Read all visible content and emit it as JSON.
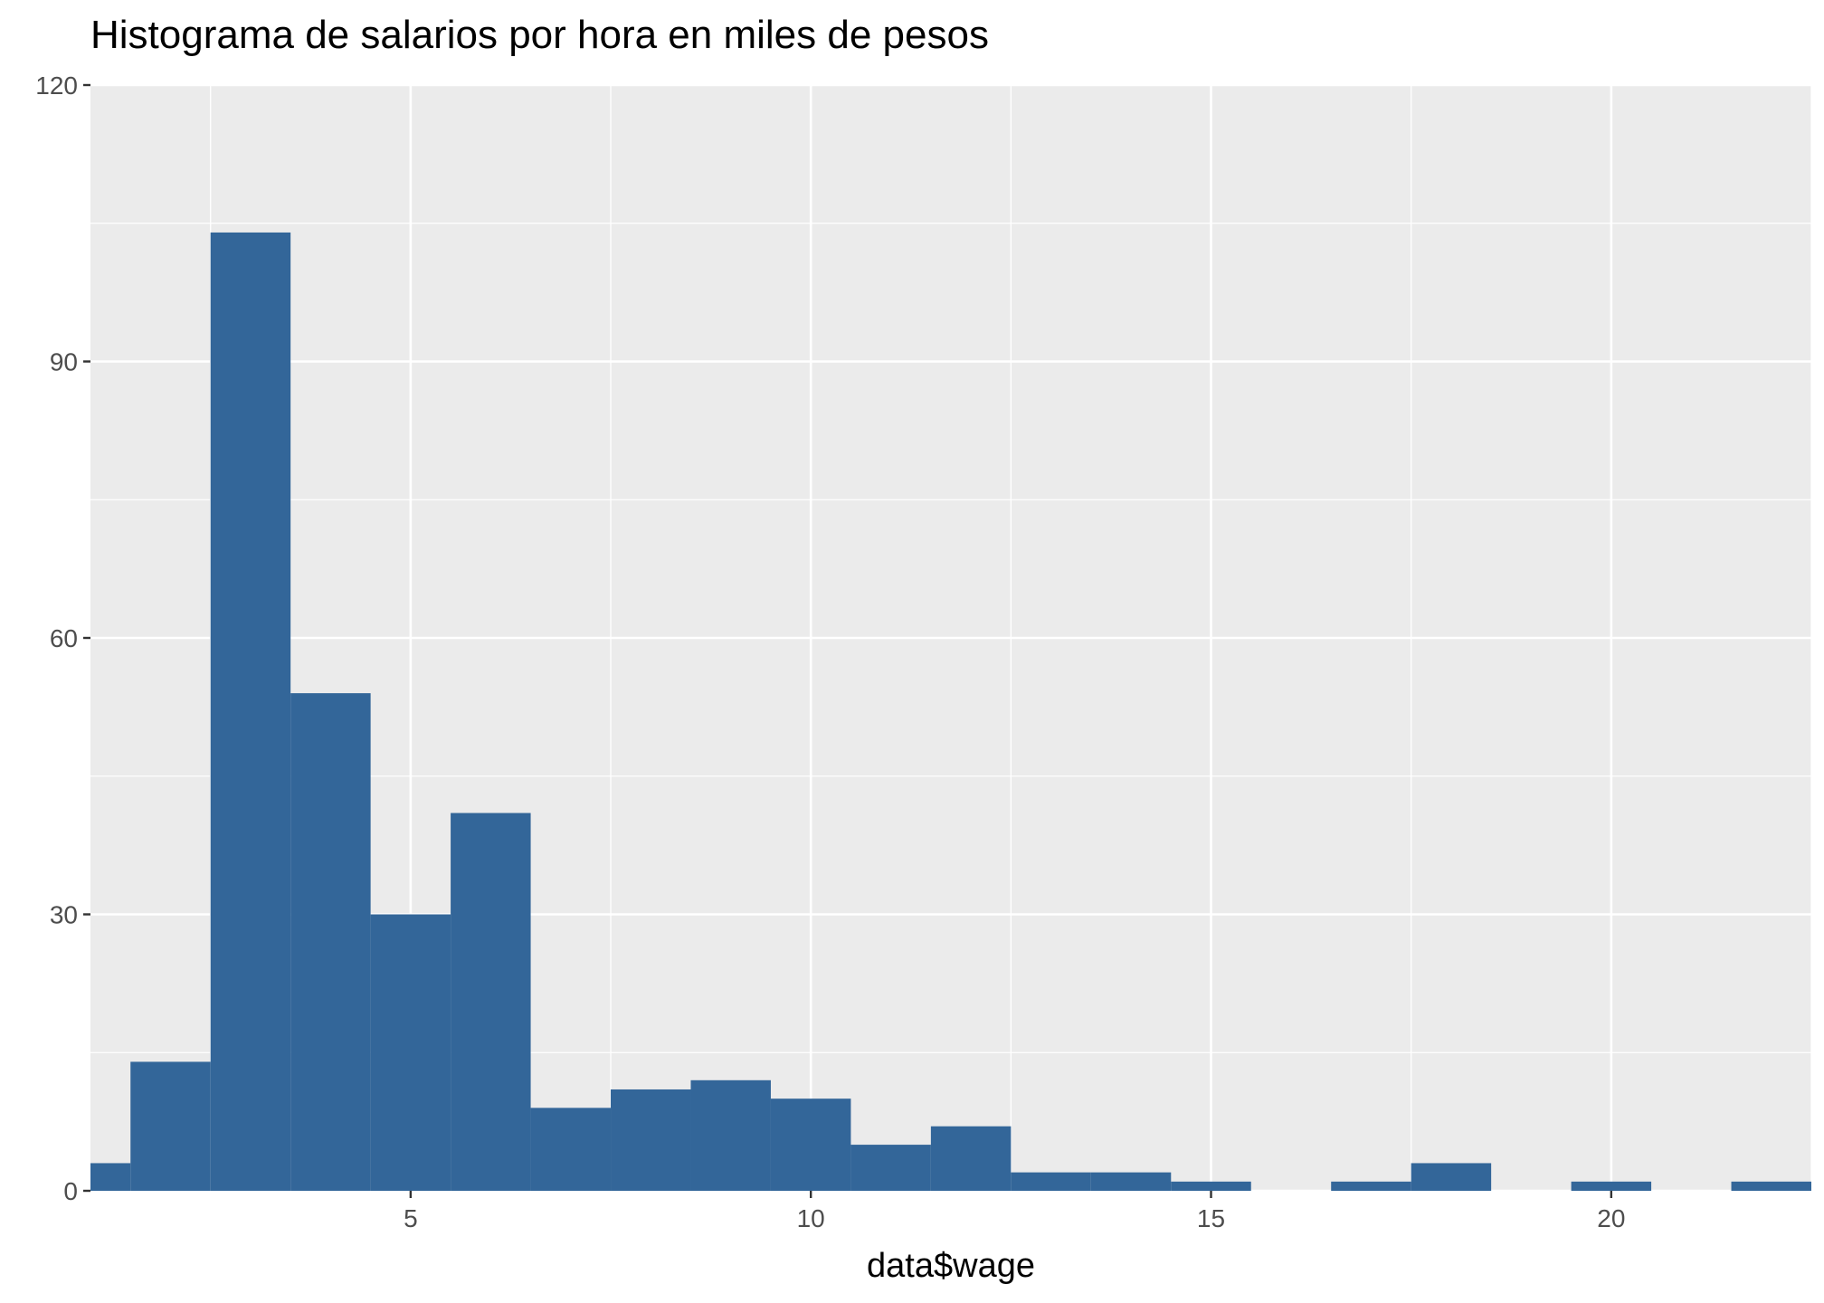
{
  "chart_data": {
    "type": "bar",
    "title": "Histograma de salarios por hora en miles de pesos",
    "xlabel": "data$wage",
    "ylabel": "",
    "bin_width": 1,
    "bins": [
      {
        "center": 1,
        "count": 3
      },
      {
        "center": 2,
        "count": 14
      },
      {
        "center": 3,
        "count": 104
      },
      {
        "center": 4,
        "count": 54
      },
      {
        "center": 5,
        "count": 30
      },
      {
        "center": 6,
        "count": 41
      },
      {
        "center": 7,
        "count": 9
      },
      {
        "center": 8,
        "count": 11
      },
      {
        "center": 9,
        "count": 12
      },
      {
        "center": 10,
        "count": 10
      },
      {
        "center": 11,
        "count": 5
      },
      {
        "center": 12,
        "count": 7
      },
      {
        "center": 13,
        "count": 2
      },
      {
        "center": 14,
        "count": 2
      },
      {
        "center": 15,
        "count": 1
      },
      {
        "center": 16,
        "count": 0
      },
      {
        "center": 17,
        "count": 1
      },
      {
        "center": 18,
        "count": 3
      },
      {
        "center": 19,
        "count": 0
      },
      {
        "center": 20,
        "count": 1
      },
      {
        "center": 21,
        "count": 0
      },
      {
        "center": 22,
        "count": 1
      }
    ],
    "xlim": [
      1.0,
      22.5
    ],
    "ylim": [
      0,
      120
    ],
    "x_ticks": [
      5,
      10,
      15,
      20
    ],
    "y_ticks": [
      0,
      30,
      60,
      90,
      120
    ],
    "grid": true,
    "colors": {
      "bar": "#336699",
      "panel": "#ebebeb",
      "grid": "#ffffff"
    }
  }
}
